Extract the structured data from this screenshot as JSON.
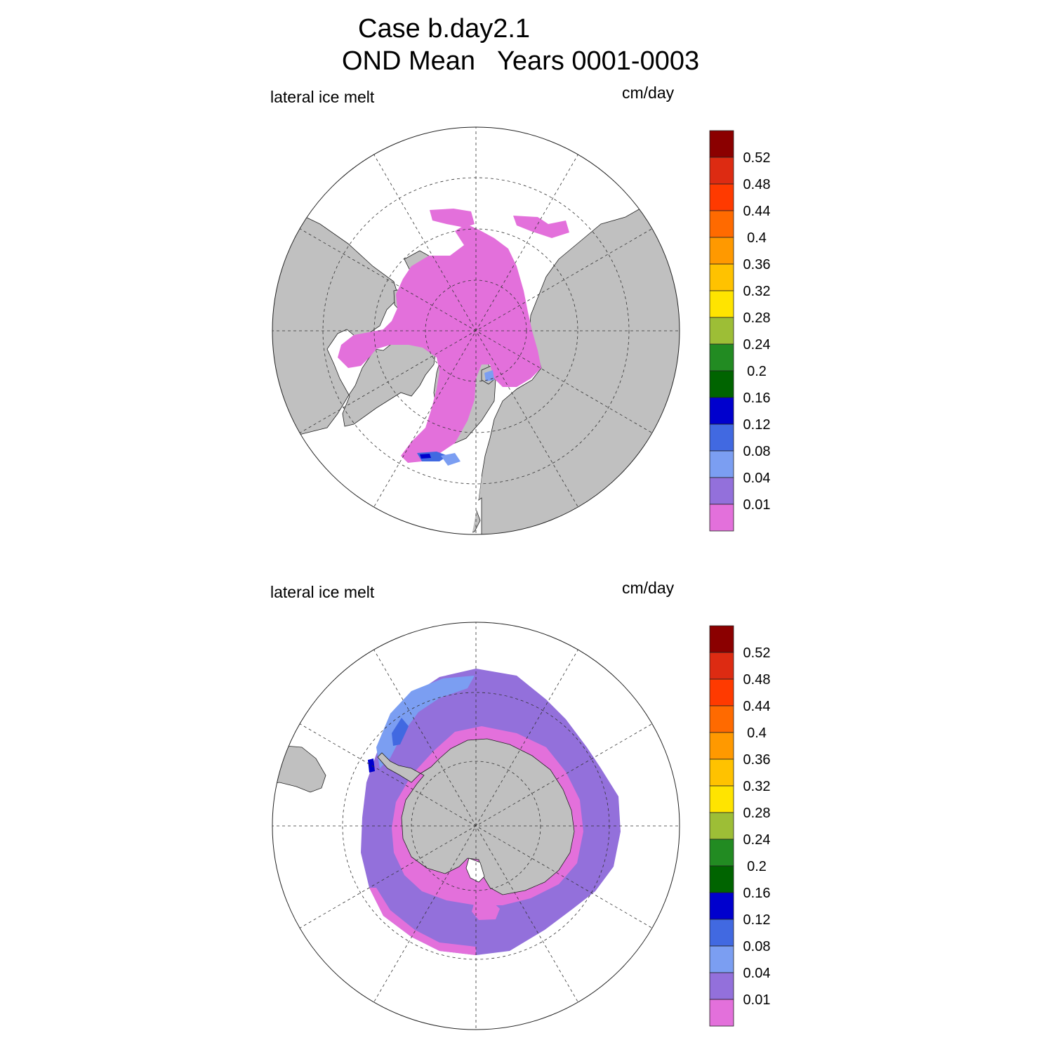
{
  "title": {
    "line1": "Case b.day2.1",
    "line2": "OND Mean   Years 0001-0003"
  },
  "colors": {
    "land": "#c0c0c0",
    "ocean": "#ffffff",
    "graticule": "#333333"
  },
  "colorbar": {
    "levels": [
      "0.52",
      "0.48",
      "0.44",
      "0.4",
      "0.36",
      "0.32",
      "0.28",
      "0.24",
      "0.2",
      "0.16",
      "0.12",
      "0.08",
      "0.04",
      "0.01"
    ],
    "colors_top_to_bottom": [
      "#8b0000",
      "#dd2b12",
      "#ff3a00",
      "#ff6a00",
      "#ff9900",
      "#ffc200",
      "#ffe400",
      "#9dbe36",
      "#228b22",
      "#006400",
      "#0000cd",
      "#4169e1",
      "#7b9ef2",
      "#9370db",
      "#e370db"
    ]
  },
  "panels": [
    {
      "id": "north",
      "hemisphere": "Northern",
      "variable_label": "lateral ice melt",
      "units_label": "cm/day"
    },
    {
      "id": "south",
      "hemisphere": "Southern",
      "variable_label": "lateral ice melt",
      "units_label": "cm/day"
    }
  ]
}
